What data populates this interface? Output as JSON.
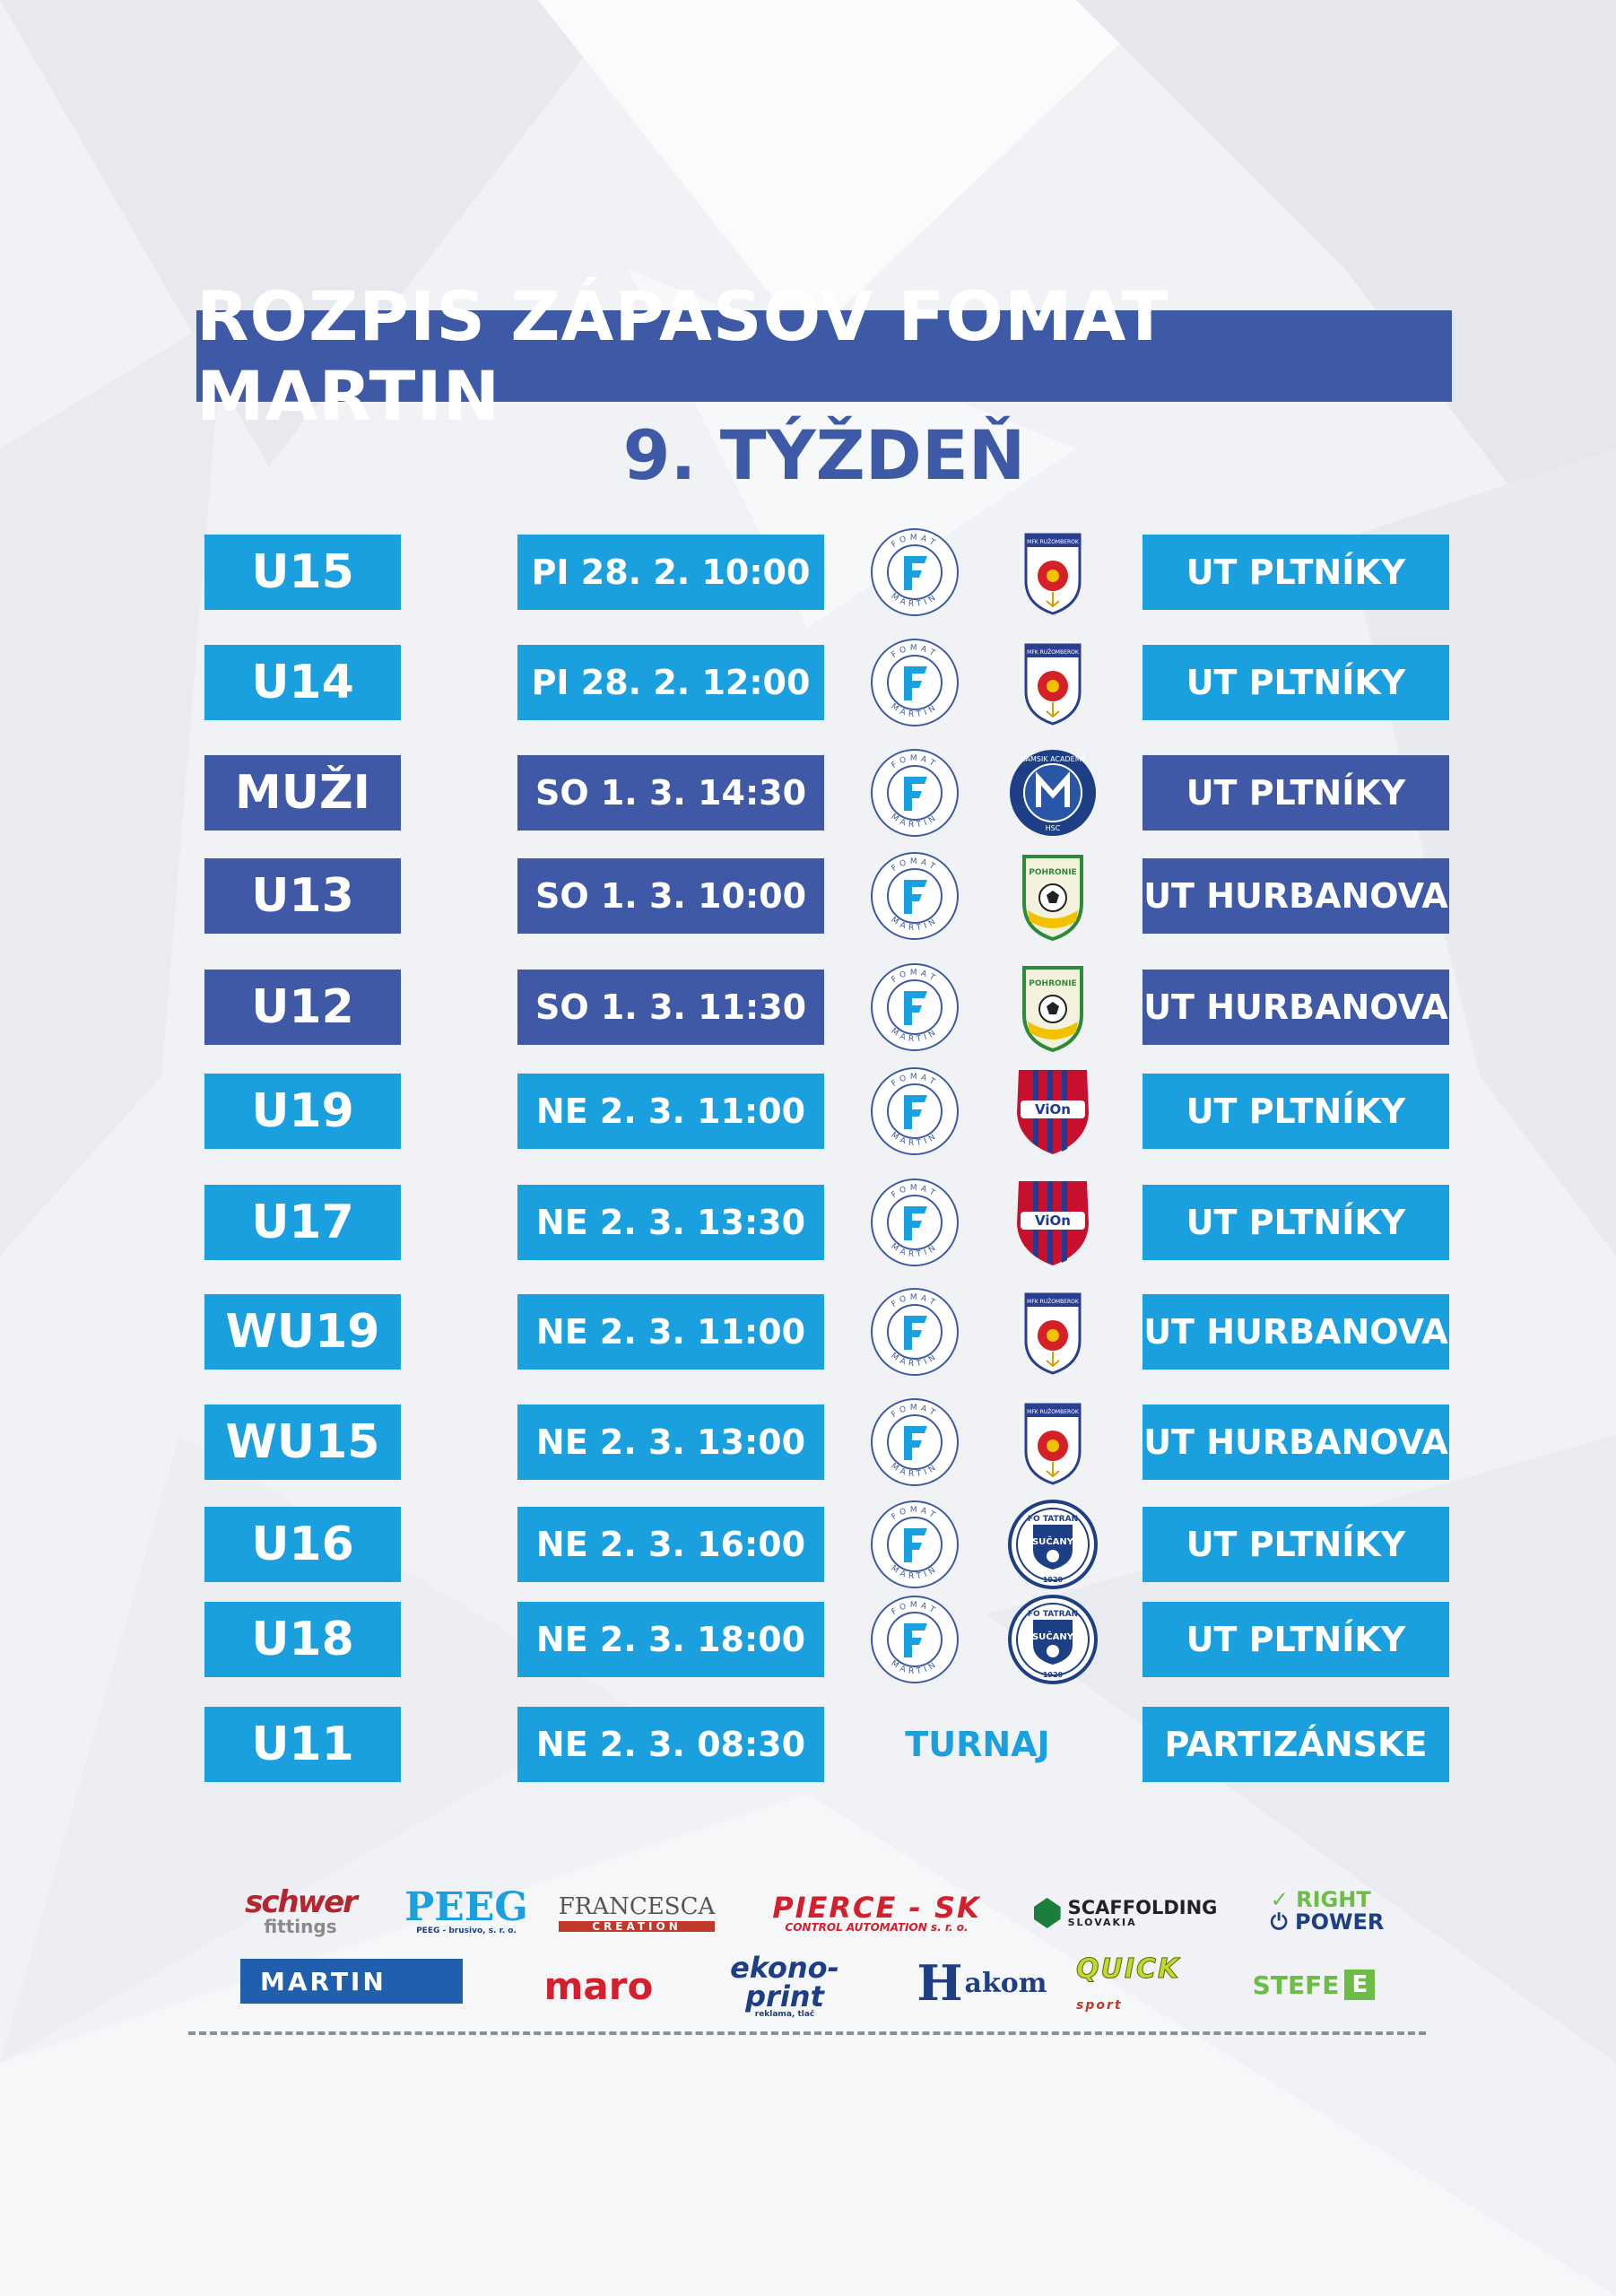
{
  "header": {
    "title": "ROZPIS ZÁPASOV FOMAT MARTIN",
    "subtitle": "9. TÝŽDEŇ"
  },
  "colors": {
    "light_blue": "#1ba0df",
    "navy": "#4059a7"
  },
  "matches": [
    {
      "category": "U15",
      "datetime": "PI 28. 2. 10:00",
      "opponent_logo": "crest-mfk-ruzomberok",
      "venue": "UT PLTNÍKY",
      "style": "blue"
    },
    {
      "category": "U14",
      "datetime": "PI 28. 2. 12:00",
      "opponent_logo": "crest-mfk-ruzomberok",
      "venue": "UT PLTNÍKY",
      "style": "blue"
    },
    {
      "category": "MUŽI",
      "datetime": "SO 1. 3. 14:30",
      "opponent_logo": "crest-hamsik-academy",
      "venue": "UT PLTNÍKY",
      "style": "navy"
    },
    {
      "category": "U13",
      "datetime": "SO 1. 3. 10:00",
      "opponent_logo": "crest-fk-pohronie",
      "venue": "UT HURBANOVA",
      "style": "navy"
    },
    {
      "category": "U12",
      "datetime": "SO 1. 3. 11:30",
      "opponent_logo": "crest-fk-pohronie",
      "venue": "UT HURBANOVA",
      "style": "navy"
    },
    {
      "category": "U19",
      "datetime": "NE 2. 3. 11:00",
      "opponent_logo": "crest-fc-vion",
      "venue": "UT PLTNÍKY",
      "style": "blue"
    },
    {
      "category": "U17",
      "datetime": "NE 2. 3. 13:30",
      "opponent_logo": "crest-fc-vion",
      "venue": "UT PLTNÍKY",
      "style": "blue"
    },
    {
      "category": "WU19",
      "datetime": "NE 2. 3. 11:00",
      "opponent_logo": "crest-mfk-ruzomberok",
      "venue": "UT HURBANOVA",
      "style": "blue"
    },
    {
      "category": "WU15",
      "datetime": "NE 2. 3. 13:00",
      "opponent_logo": "crest-mfk-ruzomberok",
      "venue": "UT HURBANOVA",
      "style": "blue"
    },
    {
      "category": "U16",
      "datetime": "NE 2. 3. 16:00",
      "opponent_logo": "crest-fo-tatran-sucany",
      "venue": "UT PLTNÍKY",
      "style": "blue"
    },
    {
      "category": "U18",
      "datetime": "NE 2. 3. 18:00",
      "opponent_logo": "crest-fo-tatran-sucany",
      "venue": "UT PLTNÍKY",
      "style": "blue"
    },
    {
      "category": "U11",
      "datetime": "NE 2. 3. 08:30",
      "opponent_text": "TURNAJ",
      "venue": "PARTIZÁNSKE",
      "style": "blue"
    }
  ],
  "crest_text": {
    "fomat_top": "FOMAT",
    "fomat_bottom": "MARTIN",
    "ruzomberok": "MFK RUŽOMBEROK",
    "hamsik": "HAMSIK ACADEMY",
    "hamsik_bottom": "HSC",
    "pohronie": "POHRONIE",
    "vion": "ViOn",
    "tatran_top": "FO TATRAN",
    "tatran_mid": "SUČANY",
    "tatran_year": "1920"
  },
  "sponsors": [
    {
      "name": "schwer",
      "sub": "fittings"
    },
    {
      "name": "PEEG",
      "sub": "PEEG - brusivo, s. r. o."
    },
    {
      "name": "FRANCESCA",
      "sub": "CREATION"
    },
    {
      "name": "PIERCE - SK",
      "sub": "CONTROL AUTOMATION  s. r. o."
    },
    {
      "name": "SCAFFOLDING",
      "sub": "SLOVAKIA"
    },
    {
      "name": "RIGHT",
      "sub": "POWER"
    },
    {
      "name": "MARTIN"
    },
    {
      "name": "maro"
    },
    {
      "name": "ekono-print",
      "sub": "reklama, tlač"
    },
    {
      "name": "akom"
    },
    {
      "name": "QUICK",
      "sub": "sport"
    },
    {
      "name": "STEFE"
    }
  ]
}
